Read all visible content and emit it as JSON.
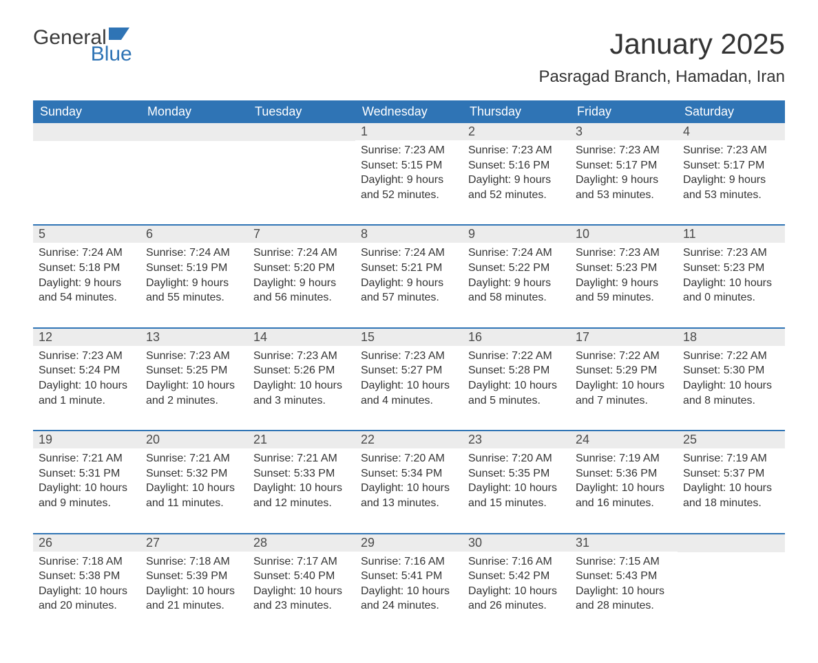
{
  "brand": {
    "general": "General",
    "blue": "Blue",
    "flag_color": "#2f74b5"
  },
  "title": "January 2025",
  "location": "Pasragad Branch, Hamadan, Iran",
  "colors": {
    "header_bg": "#2f74b5",
    "header_fg": "#ffffff",
    "daynum_bg": "#ececec",
    "text": "#333333",
    "row_border": "#2f74b5"
  },
  "weekdays": [
    "Sunday",
    "Monday",
    "Tuesday",
    "Wednesday",
    "Thursday",
    "Friday",
    "Saturday"
  ],
  "weeks": [
    [
      {
        "blank": true
      },
      {
        "blank": true
      },
      {
        "blank": true
      },
      {
        "day": "1",
        "sunrise": "Sunrise: 7:23 AM",
        "sunset": "Sunset: 5:15 PM",
        "daylight1": "Daylight: 9 hours",
        "daylight2": "and 52 minutes."
      },
      {
        "day": "2",
        "sunrise": "Sunrise: 7:23 AM",
        "sunset": "Sunset: 5:16 PM",
        "daylight1": "Daylight: 9 hours",
        "daylight2": "and 52 minutes."
      },
      {
        "day": "3",
        "sunrise": "Sunrise: 7:23 AM",
        "sunset": "Sunset: 5:17 PM",
        "daylight1": "Daylight: 9 hours",
        "daylight2": "and 53 minutes."
      },
      {
        "day": "4",
        "sunrise": "Sunrise: 7:23 AM",
        "sunset": "Sunset: 5:17 PM",
        "daylight1": "Daylight: 9 hours",
        "daylight2": "and 53 minutes."
      }
    ],
    [
      {
        "day": "5",
        "sunrise": "Sunrise: 7:24 AM",
        "sunset": "Sunset: 5:18 PM",
        "daylight1": "Daylight: 9 hours",
        "daylight2": "and 54 minutes."
      },
      {
        "day": "6",
        "sunrise": "Sunrise: 7:24 AM",
        "sunset": "Sunset: 5:19 PM",
        "daylight1": "Daylight: 9 hours",
        "daylight2": "and 55 minutes."
      },
      {
        "day": "7",
        "sunrise": "Sunrise: 7:24 AM",
        "sunset": "Sunset: 5:20 PM",
        "daylight1": "Daylight: 9 hours",
        "daylight2": "and 56 minutes."
      },
      {
        "day": "8",
        "sunrise": "Sunrise: 7:24 AM",
        "sunset": "Sunset: 5:21 PM",
        "daylight1": "Daylight: 9 hours",
        "daylight2": "and 57 minutes."
      },
      {
        "day": "9",
        "sunrise": "Sunrise: 7:24 AM",
        "sunset": "Sunset: 5:22 PM",
        "daylight1": "Daylight: 9 hours",
        "daylight2": "and 58 minutes."
      },
      {
        "day": "10",
        "sunrise": "Sunrise: 7:23 AM",
        "sunset": "Sunset: 5:23 PM",
        "daylight1": "Daylight: 9 hours",
        "daylight2": "and 59 minutes."
      },
      {
        "day": "11",
        "sunrise": "Sunrise: 7:23 AM",
        "sunset": "Sunset: 5:23 PM",
        "daylight1": "Daylight: 10 hours",
        "daylight2": "and 0 minutes."
      }
    ],
    [
      {
        "day": "12",
        "sunrise": "Sunrise: 7:23 AM",
        "sunset": "Sunset: 5:24 PM",
        "daylight1": "Daylight: 10 hours",
        "daylight2": "and 1 minute."
      },
      {
        "day": "13",
        "sunrise": "Sunrise: 7:23 AM",
        "sunset": "Sunset: 5:25 PM",
        "daylight1": "Daylight: 10 hours",
        "daylight2": "and 2 minutes."
      },
      {
        "day": "14",
        "sunrise": "Sunrise: 7:23 AM",
        "sunset": "Sunset: 5:26 PM",
        "daylight1": "Daylight: 10 hours",
        "daylight2": "and 3 minutes."
      },
      {
        "day": "15",
        "sunrise": "Sunrise: 7:23 AM",
        "sunset": "Sunset: 5:27 PM",
        "daylight1": "Daylight: 10 hours",
        "daylight2": "and 4 minutes."
      },
      {
        "day": "16",
        "sunrise": "Sunrise: 7:22 AM",
        "sunset": "Sunset: 5:28 PM",
        "daylight1": "Daylight: 10 hours",
        "daylight2": "and 5 minutes."
      },
      {
        "day": "17",
        "sunrise": "Sunrise: 7:22 AM",
        "sunset": "Sunset: 5:29 PM",
        "daylight1": "Daylight: 10 hours",
        "daylight2": "and 7 minutes."
      },
      {
        "day": "18",
        "sunrise": "Sunrise: 7:22 AM",
        "sunset": "Sunset: 5:30 PM",
        "daylight1": "Daylight: 10 hours",
        "daylight2": "and 8 minutes."
      }
    ],
    [
      {
        "day": "19",
        "sunrise": "Sunrise: 7:21 AM",
        "sunset": "Sunset: 5:31 PM",
        "daylight1": "Daylight: 10 hours",
        "daylight2": "and 9 minutes."
      },
      {
        "day": "20",
        "sunrise": "Sunrise: 7:21 AM",
        "sunset": "Sunset: 5:32 PM",
        "daylight1": "Daylight: 10 hours",
        "daylight2": "and 11 minutes."
      },
      {
        "day": "21",
        "sunrise": "Sunrise: 7:21 AM",
        "sunset": "Sunset: 5:33 PM",
        "daylight1": "Daylight: 10 hours",
        "daylight2": "and 12 minutes."
      },
      {
        "day": "22",
        "sunrise": "Sunrise: 7:20 AM",
        "sunset": "Sunset: 5:34 PM",
        "daylight1": "Daylight: 10 hours",
        "daylight2": "and 13 minutes."
      },
      {
        "day": "23",
        "sunrise": "Sunrise: 7:20 AM",
        "sunset": "Sunset: 5:35 PM",
        "daylight1": "Daylight: 10 hours",
        "daylight2": "and 15 minutes."
      },
      {
        "day": "24",
        "sunrise": "Sunrise: 7:19 AM",
        "sunset": "Sunset: 5:36 PM",
        "daylight1": "Daylight: 10 hours",
        "daylight2": "and 16 minutes."
      },
      {
        "day": "25",
        "sunrise": "Sunrise: 7:19 AM",
        "sunset": "Sunset: 5:37 PM",
        "daylight1": "Daylight: 10 hours",
        "daylight2": "and 18 minutes."
      }
    ],
    [
      {
        "day": "26",
        "sunrise": "Sunrise: 7:18 AM",
        "sunset": "Sunset: 5:38 PM",
        "daylight1": "Daylight: 10 hours",
        "daylight2": "and 20 minutes."
      },
      {
        "day": "27",
        "sunrise": "Sunrise: 7:18 AM",
        "sunset": "Sunset: 5:39 PM",
        "daylight1": "Daylight: 10 hours",
        "daylight2": "and 21 minutes."
      },
      {
        "day": "28",
        "sunrise": "Sunrise: 7:17 AM",
        "sunset": "Sunset: 5:40 PM",
        "daylight1": "Daylight: 10 hours",
        "daylight2": "and 23 minutes."
      },
      {
        "day": "29",
        "sunrise": "Sunrise: 7:16 AM",
        "sunset": "Sunset: 5:41 PM",
        "daylight1": "Daylight: 10 hours",
        "daylight2": "and 24 minutes."
      },
      {
        "day": "30",
        "sunrise": "Sunrise: 7:16 AM",
        "sunset": "Sunset: 5:42 PM",
        "daylight1": "Daylight: 10 hours",
        "daylight2": "and 26 minutes."
      },
      {
        "day": "31",
        "sunrise": "Sunrise: 7:15 AM",
        "sunset": "Sunset: 5:43 PM",
        "daylight1": "Daylight: 10 hours",
        "daylight2": "and 28 minutes."
      },
      {
        "blank": true
      }
    ]
  ]
}
